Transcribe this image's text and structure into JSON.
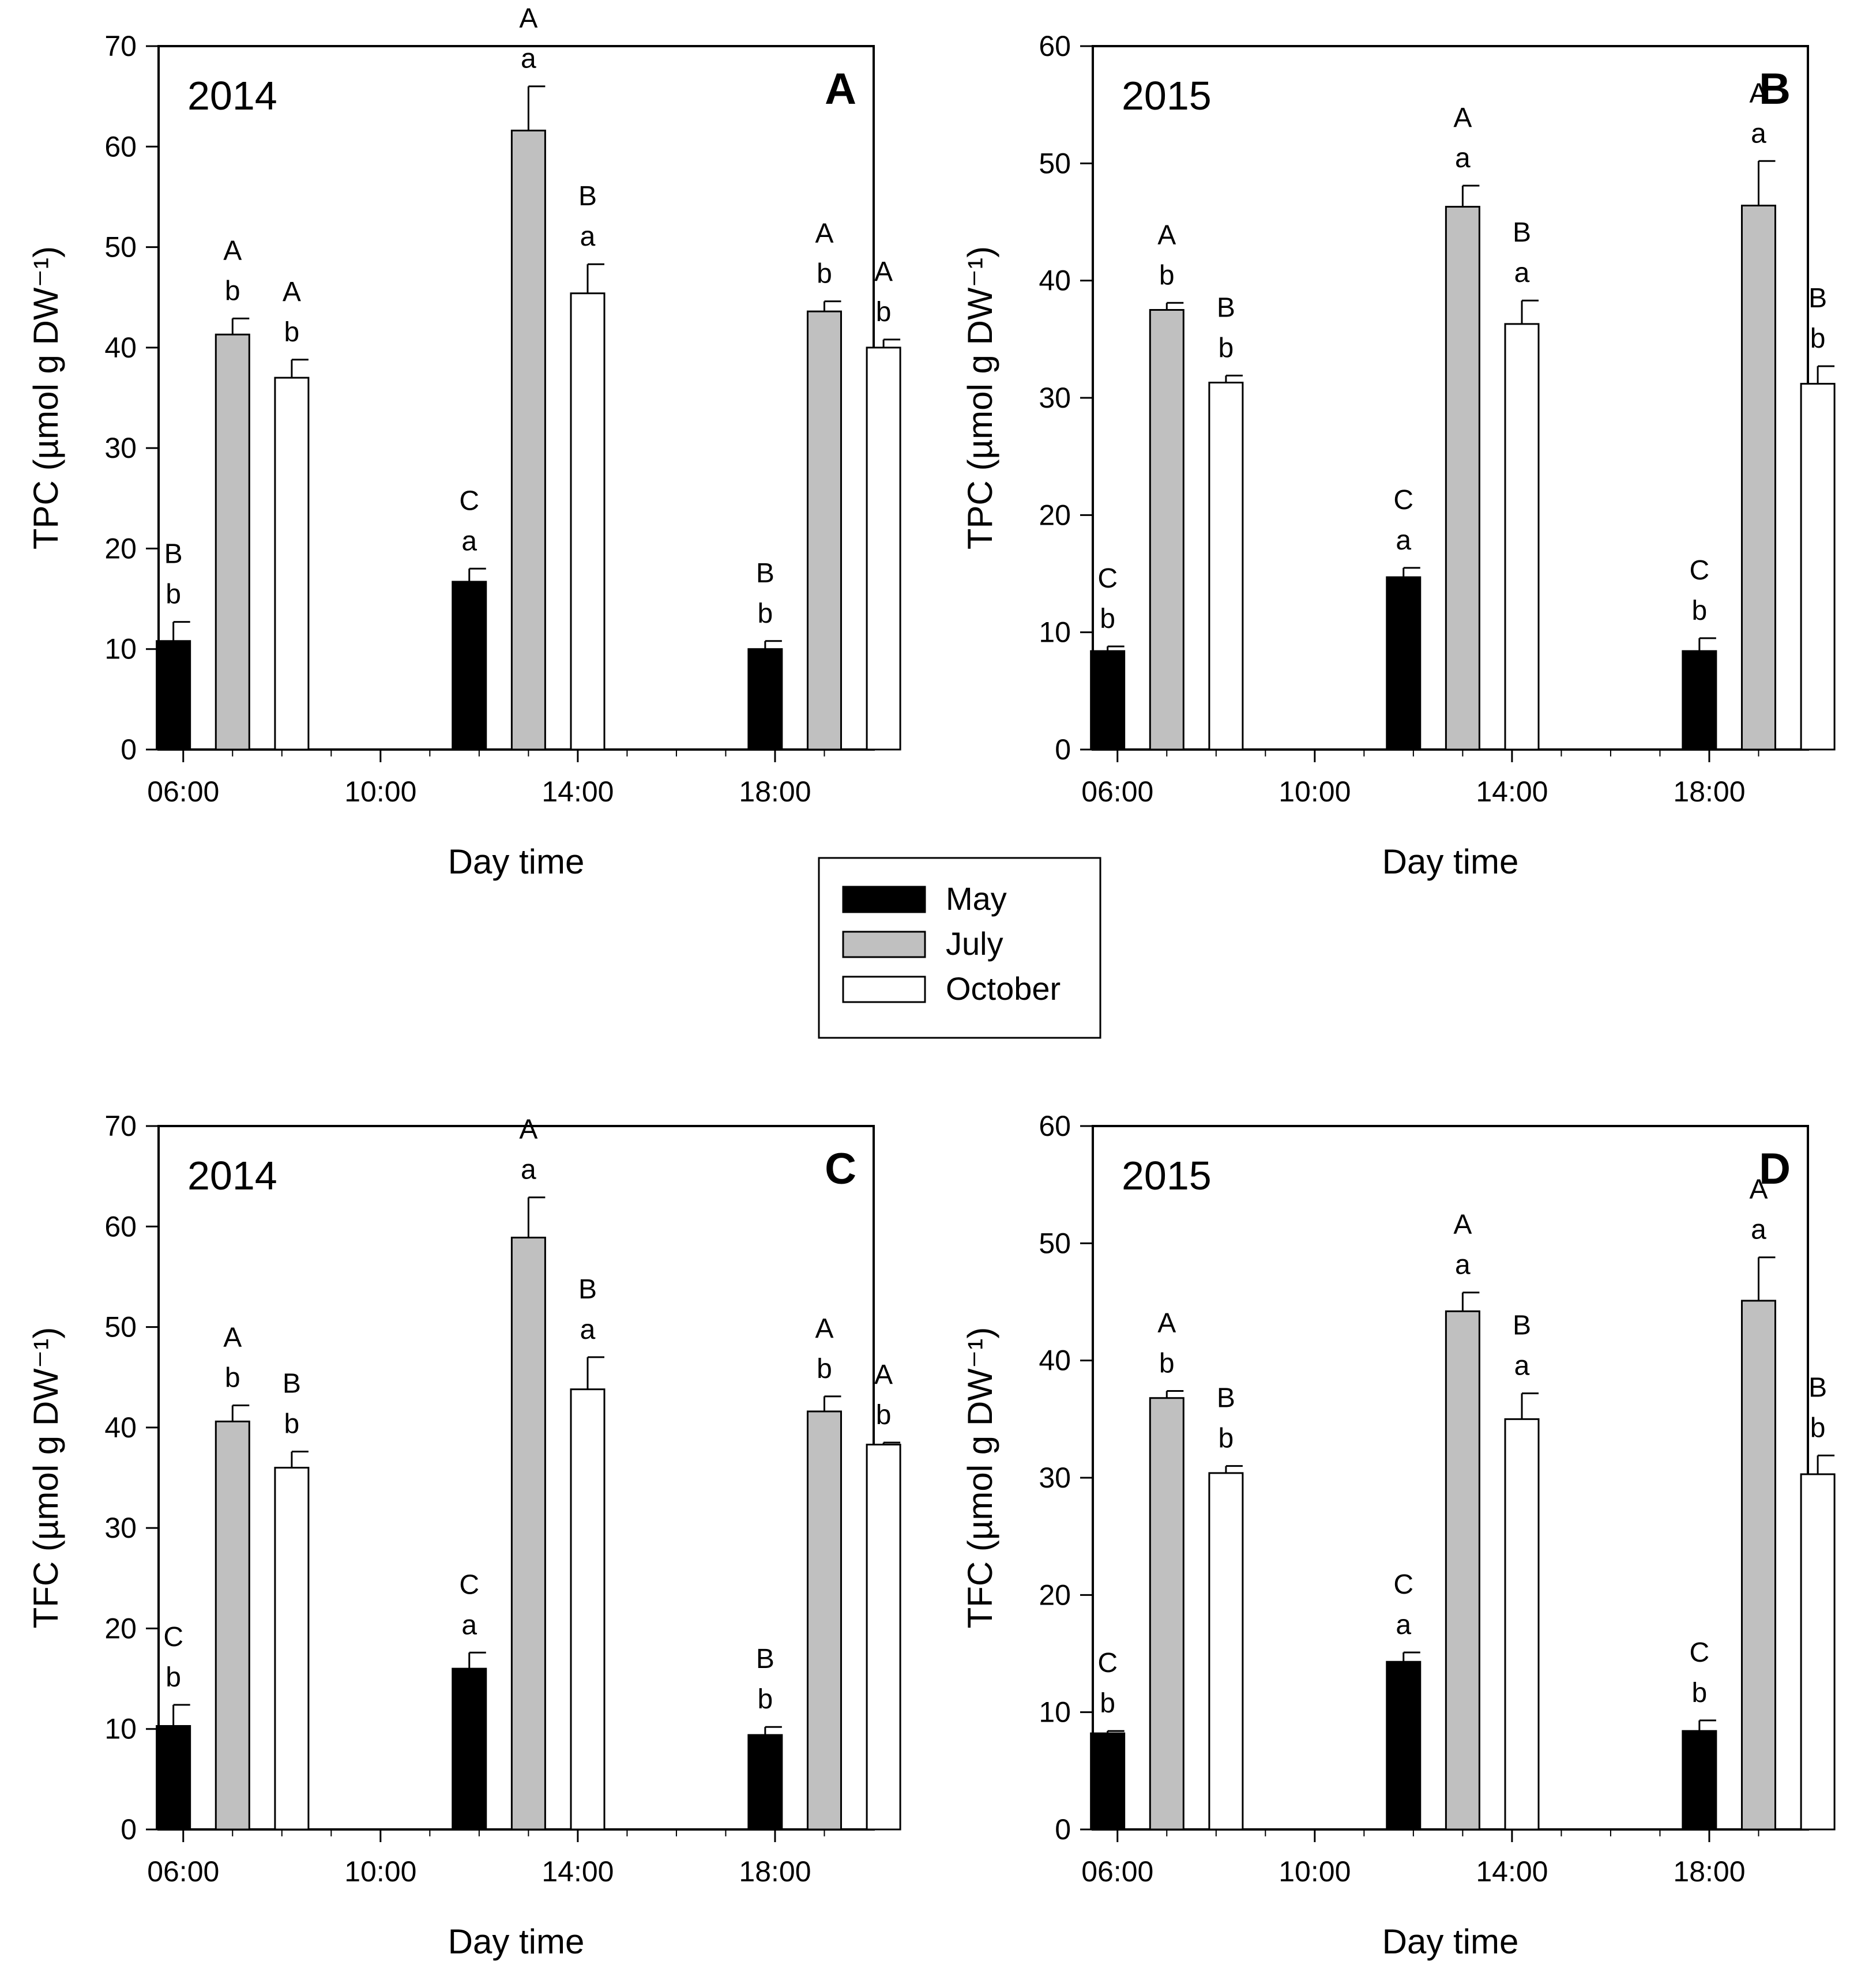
{
  "colors": {
    "May": "#000000",
    "July": "#c0c0c0",
    "October": "#ffffff",
    "axis": "#000000"
  },
  "legend": {
    "placement": "center",
    "items": [
      "May",
      "July",
      "October"
    ]
  },
  "chart_data": [
    {
      "id": "A",
      "type": "bar",
      "panel_letter": "A",
      "year": "2014",
      "xlabel": "Day time",
      "ylabel": "TPC (µmol g DW⁻¹)",
      "ylim": [
        0,
        70
      ],
      "yticks": [
        0,
        10,
        20,
        30,
        40,
        50,
        60,
        70
      ],
      "xticks": [
        "06:00",
        "10:00",
        "14:00",
        "18:00"
      ],
      "categories": [
        "07:00",
        "13:00",
        "19:00"
      ],
      "series": [
        {
          "name": "May",
          "values": [
            10.8,
            16.7,
            10.0
          ],
          "errors": [
            1.9,
            1.3,
            0.8
          ],
          "upper": [
            "B",
            "C",
            "B"
          ],
          "lower": [
            "b",
            "a",
            "b"
          ]
        },
        {
          "name": "July",
          "values": [
            41.3,
            61.6,
            43.6
          ],
          "errors": [
            1.6,
            4.4,
            1.0
          ],
          "upper": [
            "A",
            "A",
            "A"
          ],
          "lower": [
            "b",
            "a",
            "b"
          ]
        },
        {
          "name": "October",
          "values": [
            37.0,
            45.4,
            40.0
          ],
          "errors": [
            1.8,
            2.9,
            0.8
          ],
          "upper": [
            "A",
            "B",
            "A"
          ],
          "lower": [
            "b",
            "a",
            "b"
          ]
        }
      ]
    },
    {
      "id": "B",
      "type": "bar",
      "panel_letter": "B",
      "year": "2015",
      "xlabel": "Day time",
      "ylabel": "TPC (µmol g DW⁻¹)",
      "ylim": [
        0,
        60
      ],
      "yticks": [
        0,
        10,
        20,
        30,
        40,
        50,
        60
      ],
      "xticks": [
        "06:00",
        "10:00",
        "14:00",
        "18:00"
      ],
      "categories": [
        "07:00",
        "13:00",
        "19:00"
      ],
      "series": [
        {
          "name": "May",
          "values": [
            8.4,
            14.7,
            8.4
          ],
          "errors": [
            0.4,
            0.8,
            1.1
          ],
          "upper": [
            "C",
            "C",
            "C"
          ],
          "lower": [
            "b",
            "a",
            "b"
          ]
        },
        {
          "name": "July",
          "values": [
            37.5,
            46.3,
            46.4
          ],
          "errors": [
            0.6,
            1.8,
            3.8
          ],
          "upper": [
            "A",
            "A",
            "A"
          ],
          "lower": [
            "b",
            "a",
            "a"
          ]
        },
        {
          "name": "October",
          "values": [
            31.3,
            36.3,
            31.2
          ],
          "errors": [
            0.6,
            2.0,
            1.5
          ],
          "upper": [
            "B",
            "B",
            "B"
          ],
          "lower": [
            "b",
            "a",
            "b"
          ]
        }
      ]
    },
    {
      "id": "C",
      "type": "bar",
      "panel_letter": "C",
      "year": "2014",
      "xlabel": "Day time",
      "ylabel": "TFC (µmol g DW⁻¹)",
      "ylim": [
        0,
        70
      ],
      "yticks": [
        0,
        10,
        20,
        30,
        40,
        50,
        60,
        70
      ],
      "xticks": [
        "06:00",
        "10:00",
        "14:00",
        "18:00"
      ],
      "categories": [
        "07:00",
        "13:00",
        "19:00"
      ],
      "series": [
        {
          "name": "May",
          "values": [
            10.3,
            16.0,
            9.4
          ],
          "errors": [
            2.1,
            1.6,
            0.8
          ],
          "upper": [
            "C",
            "C",
            "B"
          ],
          "lower": [
            "b",
            "a",
            "b"
          ]
        },
        {
          "name": "July",
          "values": [
            40.6,
            58.9,
            41.6
          ],
          "errors": [
            1.6,
            4.0,
            1.5
          ],
          "upper": [
            "A",
            "A",
            "A"
          ],
          "lower": [
            "b",
            "a",
            "b"
          ]
        },
        {
          "name": "October",
          "values": [
            36.0,
            43.8,
            38.3
          ],
          "errors": [
            1.6,
            3.2,
            0.2
          ],
          "upper": [
            "B",
            "B",
            "A"
          ],
          "lower": [
            "b",
            "a",
            "b"
          ]
        }
      ]
    },
    {
      "id": "D",
      "type": "bar",
      "panel_letter": "D",
      "year": "2015",
      "xlabel": "Day time",
      "ylabel": "TFC (µmol g DW⁻¹)",
      "ylim": [
        0,
        60
      ],
      "yticks": [
        0,
        10,
        20,
        30,
        40,
        50,
        60
      ],
      "xticks": [
        "06:00",
        "10:00",
        "14:00",
        "18:00"
      ],
      "categories": [
        "07:00",
        "13:00",
        "19:00"
      ],
      "series": [
        {
          "name": "May",
          "values": [
            8.2,
            14.3,
            8.4
          ],
          "errors": [
            0.2,
            0.8,
            0.9
          ],
          "upper": [
            "C",
            "C",
            "C"
          ],
          "lower": [
            "b",
            "a",
            "b"
          ]
        },
        {
          "name": "July",
          "values": [
            36.8,
            44.2,
            45.1
          ],
          "errors": [
            0.6,
            1.6,
            3.7
          ],
          "upper": [
            "A",
            "A",
            "A"
          ],
          "lower": [
            "b",
            "a",
            "a"
          ]
        },
        {
          "name": "October",
          "values": [
            30.4,
            35.0,
            30.3
          ],
          "errors": [
            0.6,
            2.2,
            1.6
          ],
          "upper": [
            "B",
            "B",
            "B"
          ],
          "lower": [
            "b",
            "a",
            "b"
          ]
        }
      ]
    }
  ]
}
